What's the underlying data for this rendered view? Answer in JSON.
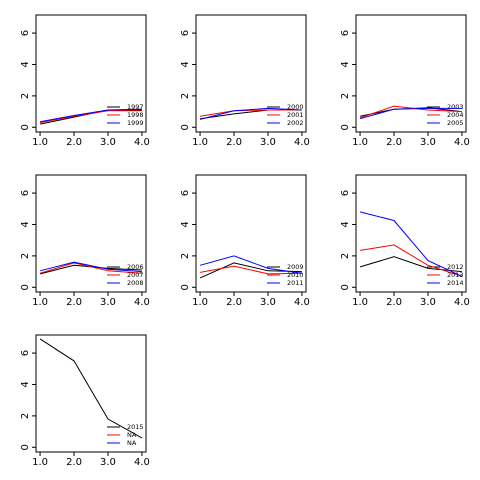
{
  "chart_data": [
    {
      "type": "line",
      "x": [
        1,
        2,
        3,
        4
      ],
      "xlim": [
        0.88,
        4.12
      ],
      "ylim": [
        -0.3,
        7.15
      ],
      "xticks": [
        {
          "value": 1,
          "label": "1.0"
        },
        {
          "value": 2,
          "label": "2.0"
        },
        {
          "value": 3,
          "label": "3.0"
        },
        {
          "value": 4,
          "label": "4.0"
        }
      ],
      "yticks": [
        0,
        2,
        4,
        6
      ],
      "legend": "bottomright",
      "series": [
        {
          "name": "1997",
          "color": "#000000",
          "values": [
            0.2,
            0.65,
            1.1,
            1.1
          ]
        },
        {
          "name": "1998",
          "color": "#ff0000",
          "values": [
            0.3,
            0.7,
            1.05,
            1.05
          ]
        },
        {
          "name": "1999",
          "color": "#0000ff",
          "values": [
            0.35,
            0.75,
            1.1,
            1.15
          ]
        }
      ]
    },
    {
      "type": "line",
      "x": [
        1,
        2,
        3,
        4
      ],
      "xlim": [
        0.88,
        4.12
      ],
      "ylim": [
        -0.3,
        7.15
      ],
      "xticks": [
        {
          "value": 1,
          "label": "1.0"
        },
        {
          "value": 2,
          "label": "2.0"
        },
        {
          "value": 3,
          "label": "3.0"
        },
        {
          "value": 4,
          "label": "4.0"
        }
      ],
      "yticks": [
        0,
        2,
        4,
        6
      ],
      "legend": "bottomright",
      "series": [
        {
          "name": "2000",
          "color": "#000000",
          "values": [
            0.55,
            0.85,
            1.1,
            1.1
          ]
        },
        {
          "name": "2001",
          "color": "#ff0000",
          "values": [
            0.7,
            1.05,
            1.1,
            1.1
          ]
        },
        {
          "name": "2002",
          "color": "#0000ff",
          "values": [
            0.5,
            1.05,
            1.2,
            1.1
          ]
        }
      ]
    },
    {
      "type": "line",
      "x": [
        1,
        2,
        3,
        4
      ],
      "xlim": [
        0.88,
        4.12
      ],
      "ylim": [
        -0.3,
        7.15
      ],
      "xticks": [
        {
          "value": 1,
          "label": "1.0"
        },
        {
          "value": 2,
          "label": "2.0"
        },
        {
          "value": 3,
          "label": "3.0"
        },
        {
          "value": 4,
          "label": "4.0"
        }
      ],
      "yticks": [
        0,
        2,
        4,
        6
      ],
      "legend": "bottomright",
      "series": [
        {
          "name": "2003",
          "color": "#000000",
          "values": [
            0.7,
            1.15,
            1.25,
            1.0
          ]
        },
        {
          "name": "2004",
          "color": "#ff0000",
          "values": [
            0.6,
            1.35,
            1.1,
            1.0
          ]
        },
        {
          "name": "2005",
          "color": "#0000ff",
          "values": [
            0.55,
            1.15,
            1.2,
            1.2
          ]
        }
      ]
    },
    {
      "type": "line",
      "x": [
        1,
        2,
        3,
        4
      ],
      "xlim": [
        0.88,
        4.12
      ],
      "ylim": [
        -0.3,
        7.15
      ],
      "xticks": [
        {
          "value": 1,
          "label": "1.0"
        },
        {
          "value": 2,
          "label": "2.0"
        },
        {
          "value": 3,
          "label": "3.0"
        },
        {
          "value": 4,
          "label": "4.0"
        }
      ],
      "yticks": [
        0,
        2,
        4,
        6
      ],
      "legend": "bottomright",
      "series": [
        {
          "name": "2006",
          "color": "#000000",
          "values": [
            0.85,
            1.4,
            1.2,
            1.1
          ]
        },
        {
          "name": "2007",
          "color": "#ff0000",
          "values": [
            0.9,
            1.55,
            1.05,
            0.9
          ]
        },
        {
          "name": "2008",
          "color": "#0000ff",
          "values": [
            1.05,
            1.6,
            1.15,
            1.0
          ]
        }
      ]
    },
    {
      "type": "line",
      "x": [
        1,
        2,
        3,
        4
      ],
      "xlim": [
        0.88,
        4.12
      ],
      "ylim": [
        -0.3,
        7.15
      ],
      "xticks": [
        {
          "value": 1,
          "label": "1.0"
        },
        {
          "value": 2,
          "label": "2.0"
        },
        {
          "value": 3,
          "label": "3.0"
        },
        {
          "value": 4,
          "label": "4.0"
        }
      ],
      "yticks": [
        0,
        2,
        4,
        6
      ],
      "legend": "bottomright",
      "series": [
        {
          "name": "2009",
          "color": "#000000",
          "values": [
            0.6,
            1.55,
            1.05,
            1.0
          ]
        },
        {
          "name": "2010",
          "color": "#ff0000",
          "values": [
            0.95,
            1.35,
            0.85,
            0.9
          ]
        },
        {
          "name": "2011",
          "color": "#0000ff",
          "values": [
            1.4,
            2.0,
            1.2,
            0.9
          ]
        }
      ]
    },
    {
      "type": "line",
      "x": [
        1,
        2,
        3,
        4
      ],
      "xlim": [
        0.88,
        4.12
      ],
      "ylim": [
        -0.3,
        7.15
      ],
      "xticks": [
        {
          "value": 1,
          "label": "1.0"
        },
        {
          "value": 2,
          "label": "2.0"
        },
        {
          "value": 3,
          "label": "3.0"
        },
        {
          "value": 4,
          "label": "4.0"
        }
      ],
      "yticks": [
        0,
        2,
        4,
        6
      ],
      "legend": "bottomright",
      "series": [
        {
          "name": "2012",
          "color": "#000000",
          "values": [
            1.3,
            1.95,
            1.2,
            1.0
          ]
        },
        {
          "name": "2013",
          "color": "#ff0000",
          "values": [
            2.35,
            2.7,
            1.4,
            0.7
          ]
        },
        {
          "name": "2014",
          "color": "#0000ff",
          "values": [
            4.8,
            4.25,
            1.7,
            0.7
          ]
        }
      ]
    },
    {
      "type": "line",
      "x": [
        1,
        2,
        3,
        4
      ],
      "xlim": [
        0.88,
        4.12
      ],
      "ylim": [
        -0.3,
        7.15
      ],
      "xticks": [
        {
          "value": 1,
          "label": "1.0"
        },
        {
          "value": 2,
          "label": "2.0"
        },
        {
          "value": 3,
          "label": "3.0"
        },
        {
          "value": 4,
          "label": "4.0"
        }
      ],
      "yticks": [
        0,
        2,
        4,
        6
      ],
      "legend": "bottomright",
      "series": [
        {
          "name": "2015",
          "color": "#000000",
          "values": [
            6.9,
            5.5,
            1.8,
            0.6
          ]
        },
        {
          "name": "NA",
          "color": "#ff0000",
          "values": [
            null,
            null,
            null,
            null
          ]
        },
        {
          "name": "NA",
          "color": "#0000ff",
          "values": [
            null,
            null,
            null,
            null
          ]
        }
      ]
    }
  ]
}
